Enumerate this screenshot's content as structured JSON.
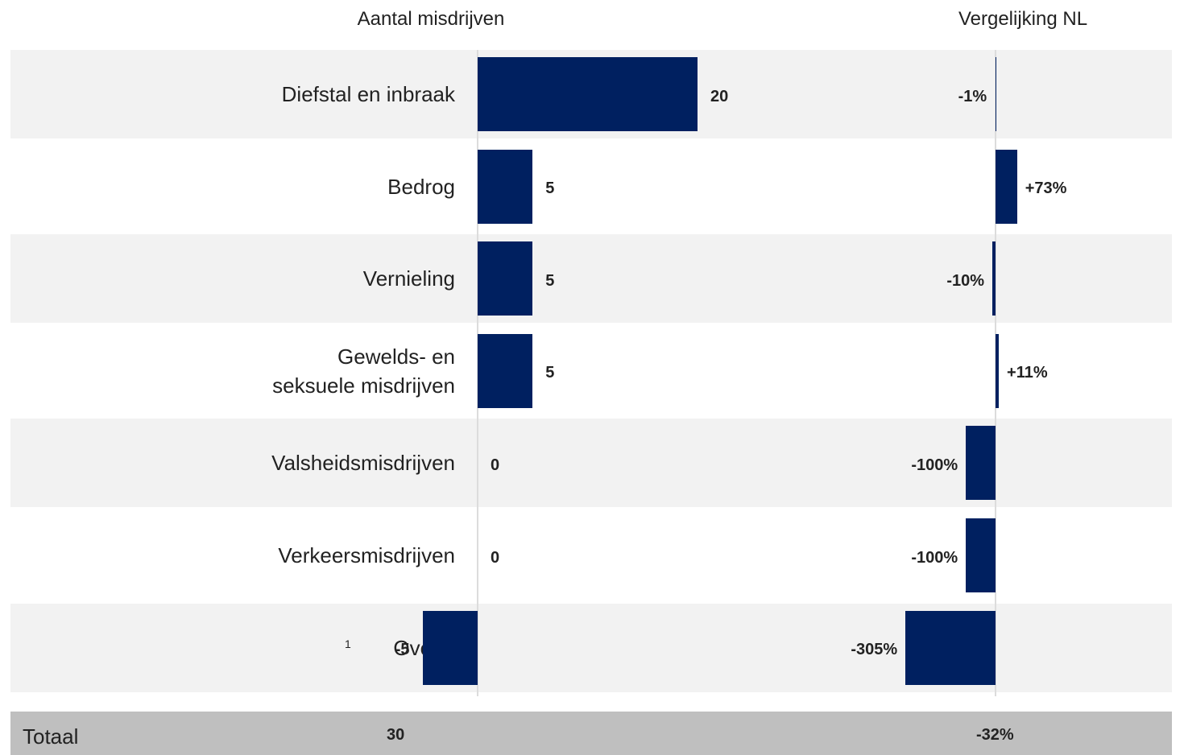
{
  "chart_data": [
    {
      "type": "bar",
      "orientation": "horizontal",
      "title": "Aantal misdrijven",
      "categories": [
        "Diefstal en inbraak",
        "Bedrog",
        "Vernieling",
        "Gewelds- en\nseksuele misdrijven",
        "Valsheidsmisdrijven",
        "Verkeersmisdrijven",
        "Overig"
      ],
      "values": [
        20,
        5,
        5,
        5,
        0,
        0,
        -5
      ],
      "color": "#002060",
      "footnote": "1"
    },
    {
      "type": "bar",
      "orientation": "horizontal",
      "title": "Vergelijking NL",
      "values": [
        -1,
        73,
        -10,
        11,
        -100,
        -100,
        -305
      ],
      "value_labels": [
        "-1%",
        "+73%",
        "-10%",
        "+11%",
        "-100%",
        "-100%",
        "-305%"
      ],
      "color": "#002060"
    }
  ],
  "total": {
    "label": "Totaal",
    "count": 30,
    "comparison": -32,
    "comparison_label": "-32%"
  }
}
